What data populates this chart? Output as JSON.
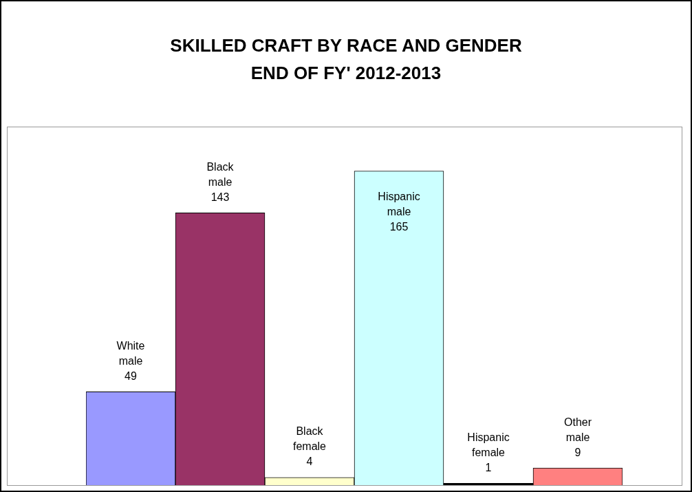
{
  "chart_data": {
    "type": "bar",
    "title": "SKILLED CRAFT BY RACE AND GENDER",
    "subtitle": "END OF FY' 2012-2013",
    "categories": [
      "White male",
      "Black male",
      "Black female",
      "Hispanic male",
      "Hispanic female",
      "Other male"
    ],
    "values": [
      49,
      143,
      4,
      165,
      1,
      9
    ],
    "colors": [
      "#9999ff",
      "#993366",
      "#ffffcc",
      "#ccffff",
      "#000000",
      "#ff8080"
    ],
    "data_labels": true,
    "legend": false
  }
}
